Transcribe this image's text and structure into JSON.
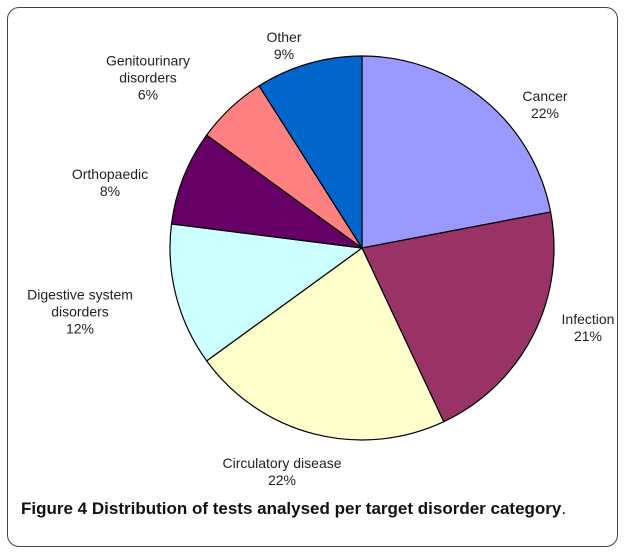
{
  "chart_data": {
    "type": "pie",
    "categories": [
      "Cancer",
      "Infection",
      "Circulatory disease",
      "Digestive system disorders",
      "Orthopaedic",
      "Genitourinary disorders",
      "Other"
    ],
    "values": [
      22,
      21,
      22,
      12,
      8,
      6,
      9
    ],
    "value_labels": [
      "22%",
      "21%",
      "22%",
      "12%",
      "8%",
      "6%",
      "9%"
    ],
    "colors": [
      "#9999ff",
      "#993366",
      "#ffffcc",
      "#ccffff",
      "#660066",
      "#ff8080",
      "#0066cc"
    ]
  },
  "caption": {
    "label": "Figure 4",
    "text": "Distribution of tests analysed per target disorder category",
    "end": "."
  }
}
